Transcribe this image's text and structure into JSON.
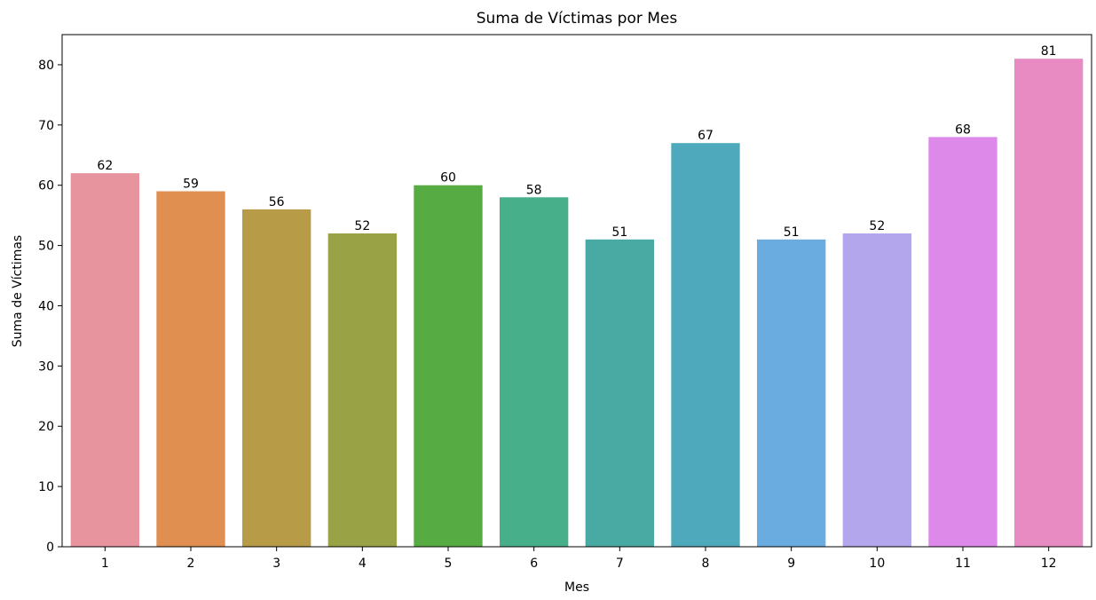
{
  "chart_data": {
    "type": "bar",
    "title": "Suma de Víctimas por Mes",
    "xlabel": "Mes",
    "ylabel": "Suma de Víctimas",
    "categories": [
      "1",
      "2",
      "3",
      "4",
      "5",
      "6",
      "7",
      "8",
      "9",
      "10",
      "11",
      "12"
    ],
    "values": [
      62,
      59,
      56,
      52,
      60,
      58,
      51,
      67,
      51,
      52,
      68,
      81
    ],
    "bar_labels": [
      "62",
      "59",
      "56",
      "52",
      "60",
      "58",
      "51",
      "67",
      "51",
      "52",
      "68",
      "81"
    ],
    "colors": [
      "#e8949f",
      "#e08f50",
      "#b89b46",
      "#99a244",
      "#57ab43",
      "#47b08a",
      "#48aaa2",
      "#4fa9bd",
      "#6aabe0",
      "#b4a6ec",
      "#dd89e9",
      "#e78bc2"
    ],
    "ylim": [
      0,
      85
    ],
    "yticks": [
      0,
      10,
      20,
      30,
      40,
      50,
      60,
      70,
      80
    ],
    "ytick_labels": [
      "0",
      "10",
      "20",
      "30",
      "40",
      "50",
      "60",
      "70",
      "80"
    ],
    "grid": false,
    "legend": "none"
  }
}
